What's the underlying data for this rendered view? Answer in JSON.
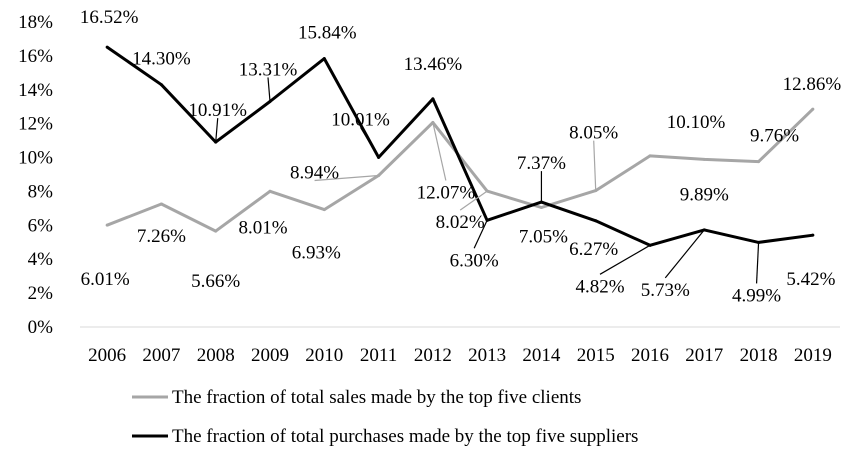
{
  "chart_data": {
    "type": "line",
    "title": "",
    "xlabel": "",
    "ylabel": "",
    "x": [
      "2006",
      "2007",
      "2008",
      "2009",
      "2010",
      "2011",
      "2012",
      "2013",
      "2014",
      "2015",
      "2016",
      "2017",
      "2018",
      "2019"
    ],
    "ylim": [
      0,
      18
    ],
    "yticks": [
      0,
      2,
      4,
      6,
      8,
      10,
      12,
      14,
      16,
      18
    ],
    "ytick_labels": [
      "0%",
      "2%",
      "4%",
      "6%",
      "8%",
      "10%",
      "12%",
      "14%",
      "16%",
      "18%"
    ],
    "grid": false,
    "legend_position": "bottom",
    "series": [
      {
        "name": "The fraction of total sales made by the top five clients",
        "color": "#a6a6a6",
        "values": [
          6.01,
          7.26,
          5.66,
          8.01,
          6.93,
          8.94,
          12.07,
          8.02,
          7.05,
          8.05,
          10.1,
          9.89,
          9.76,
          12.86
        ],
        "labels": [
          "6.01%",
          "7.26%",
          "5.66%",
          "8.01%",
          "6.93%",
          "8.94%",
          "12.07%",
          "8.02%",
          "7.05%",
          "8.05%",
          "10.10%",
          "9.89%",
          "9.76%",
          "12.86%"
        ]
      },
      {
        "name": "The fraction of total purchases made by the top five suppliers",
        "color": "#000000",
        "values": [
          16.52,
          14.3,
          10.91,
          13.31,
          15.84,
          10.01,
          13.46,
          6.3,
          7.37,
          6.27,
          4.82,
          5.73,
          4.99,
          5.42
        ],
        "labels": [
          "16.52%",
          "14.30%",
          "10.91%",
          "13.31%",
          "15.84%",
          "10.01%",
          "13.46%",
          "6.30%",
          "7.37%",
          "6.27%",
          "4.82%",
          "5.73%",
          "4.99%",
          "5.42%"
        ]
      }
    ]
  }
}
